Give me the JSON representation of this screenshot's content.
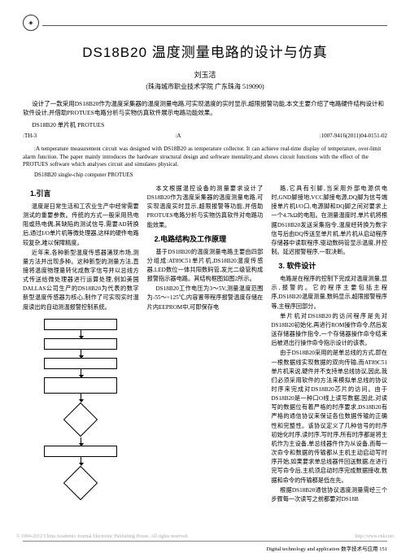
{
  "header": {
    "badge_glyph": "◈"
  },
  "title": "DS18B20 温度测量电路的设计与仿真",
  "author": "刘玉洁",
  "affiliation": "(珠海城市职业技术学院  广东珠海  519090)",
  "abstract_zh_line1": "设计了一款采用DS18B20作为温度采集器的温度测量电路,可实现温度的实时显示,超限报警功能,本文主要介绍了电路硬件结构设计和软件设计,并借助PROTUES电路分析与实物仿真软件展示电路功能效果。",
  "keywords_zh": "DS18B20 单片机 PROTUES",
  "class_left": ":TH-3",
  "class_mid": ":A",
  "class_right": ":1007-9416(2011)04-0151-02",
  "abstract_en": ":A temperature measurement circuit was designed with DS18B20 as temperature collector. It can achieve real-time display of temperature, over-limit alarm function. The paper mainly introduces the hardware structural design and software mentality,and shows circuit functions with the effect of the PROTUES software which analyses circuit and simulates physical.",
  "keywords_en": "DS18B20 single-chip computer PROTUES",
  "col1": {
    "sec1_title": "1.引言",
    "p1": "温度是日常生活和工农业生产中经常需要测试的重要参数。传统的方式一般采用热电阻或热电偶,其缺陷的测试信号,需要AD转换后,通过I/O单片机等微处理器,这样的硬件电路较复杂,难以保障精度。",
    "p2": "近年来,各种新型温度传感器涌现市场,测量方法并出现多种。这种新型的测量方法,直接将温度物理量转化成数字信号并以总线方式传送给微处理器进行运算处理,例如美国DALLAS公司生产的DS18B20为代表的数字新型温度传感器为核心,制作了可实现实时温度读出的自动测温报警控制系统。"
  },
  "col2": {
    "p1": "本文根据温控设备的测量要求设计了DS18B20作为温度采集器的温度测量电路,可实现温度实时显示,超限报警等功能,并借助PROTUES电路分析与实物仿真软件对电路功能效果。",
    "sec2_title": "2.电路结构及工作原理",
    "p2": "基于DS18B20的温度测量电路主要由四部分组成:AT89C51单片机,DS18B20温度传感器,LED数位一体共阳数码管,发光二级管构成报警指示器电路。其结构框图如图2所示。",
    "p3": "DS18B20工作电压为3～5V,测量温度范围为-55～+125℃,内容置带程序报警温度存储在片内EEPROM中,可即保存电"
  },
  "col3": {
    "p1": "路,它具有引脚,当采用外部电源供电时,GND脚接地,VCC脚接电源,DQ脚为信号端接单片机I/O口,电源脚和DQ脚之间对要求上一个4.7kΩ的电阻。在测量温度时,单片机将根据DS18B20发送采集指令,温度经转换为数字信号后由DQ传送至单片机,单片机从启动程序存储器中读取程序,驱动数码管显示温度,并控制。延迟报警程序,一取决断。",
    "sec3_title": "3. 软件设计",
    "p2": "电路是在程序的控制下完成对温度测量,显示,报警的。它的程序主要包括主程序,DS18B20温度测量,数码显示,超限报警程序等,主程序回部分。",
    "p3": "单片机对DS18B20的访问程序是先对DS18B20初始化,再进行ROM操作命令,然后发送存储器操作指令,一个存储器操作命令结束后被退出行操作命令指示设计的该表。",
    "p4": "由于DS18B20采用的是单总线的方式,即在一根数据线实现数据的双向传输,而AT89C51单片机来说,硬件并不支持单总线协议,因此,我们必须采用软件的方法来模拟单总线的协议时序来完成对DS18B20芯片的访问。由于DS18B20是一种口O线上读写数据,因此,对读写的数据位有着严格的时序要求,DS18B20有严格的通信协议来保证各位数据传输的正确性和完整性。该协议定义了几种信号的时序初始化时序,读时序,写时序,所有时序都是将主机作为主设备,单总线器件作为从设备,而每一次命令和数据的传输都从主机主动启动写时序开始,如果要求单总线器件回送数据,在进行完写命令后,主机须启动时序完成数据接收,数据和命令的传输都是低在先。",
    "p5": "根据DS18B20通信协议温度测量需经三个步骤每一次读写之前都要对DS18B"
  },
  "footer": {
    "cnki_left": "© 1994-2012 China Academic Journal Electronic Publishing House. All rights reserved.",
    "cnki_right": "http://www.cnki.net",
    "left": "",
    "right": "Digital technology and application 数字技术与应用   151"
  }
}
